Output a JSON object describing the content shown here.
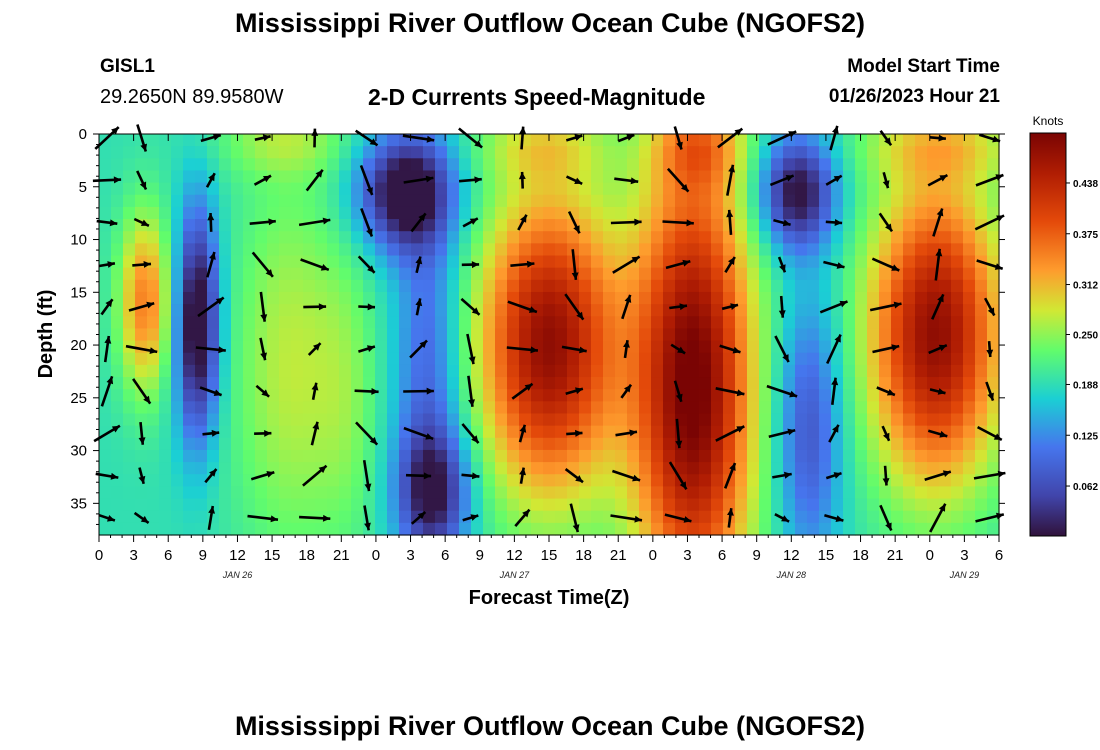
{
  "page": {
    "title": "Mississippi River Outflow Ocean Cube (NGOFS2)",
    "title_bottom": "Mississippi River Outflow Ocean Cube (NGOFS2)",
    "station": "GISL1",
    "coords": "29.2650N  89.9580W",
    "subtitle": "2-D Currents Speed-Magnitude",
    "model_start_label": "Model Start Time",
    "model_start_value": "01/26/2023 Hour 21"
  },
  "chart_data": {
    "type": "heatmap",
    "title": "2-D Currents Speed-Magnitude",
    "xlabel": "Forecast Time(Z)",
    "ylabel": "Depth (ft)",
    "xlim": [
      0,
      78
    ],
    "ylim": [
      38,
      0
    ],
    "x_tick_values": [
      0,
      3,
      6,
      9,
      12,
      15,
      18,
      21,
      24,
      27,
      30,
      33,
      36,
      39,
      42,
      45,
      48,
      51,
      54,
      57,
      60,
      63,
      66,
      69,
      72,
      75,
      78
    ],
    "x_tick_labels": [
      "0",
      "3",
      "6",
      "9",
      "12",
      "15",
      "18",
      "21",
      "0",
      "3",
      "6",
      "9",
      "12",
      "15",
      "18",
      "21",
      "0",
      "3",
      "6",
      "9",
      "12",
      "15",
      "18",
      "21",
      "0",
      "3",
      "6"
    ],
    "day_labels": [
      {
        "text": "JAN 26",
        "x": 12
      },
      {
        "text": "JAN 27",
        "x": 36
      },
      {
        "text": "JAN 28",
        "x": 60
      },
      {
        "text": "JAN 29",
        "x": 75
      }
    ],
    "y_tick_values": [
      0,
      5,
      10,
      15,
      20,
      25,
      30,
      35
    ],
    "y_tick_labels": [
      "0",
      "5",
      "10",
      "15",
      "20",
      "25",
      "30",
      "35"
    ],
    "colorbar": {
      "title": "Knots",
      "range": [
        0,
        0.5
      ],
      "tick_values": [
        0.062,
        0.125,
        0.188,
        0.25,
        0.312,
        0.375,
        0.438
      ],
      "tick_labels": [
        "0.062",
        "0.125",
        "0.188",
        "0.250",
        "0.312",
        "0.375",
        "0.438"
      ]
    },
    "speed_field_knots": {
      "description": "peak speed features (knots) read from the colour field",
      "features": [
        {
          "x_hours": 4,
          "depth_ft": [
            11,
            22
          ],
          "speed": 0.3
        },
        {
          "x_hours": 8.5,
          "depth_ft": [
            12,
            24
          ],
          "speed": 0.02
        },
        {
          "x_hours": 16.5,
          "depth_ft": [
            12,
            34
          ],
          "speed": 0.26
        },
        {
          "x_hours": 26.5,
          "depth_ft": [
            3,
            9
          ],
          "speed": 0.02
        },
        {
          "x_hours": 30.5,
          "depth_ft": [
            30,
            37
          ],
          "speed": 0.03
        },
        {
          "x_hours": 39,
          "depth_ft": [
            11,
            30
          ],
          "speed": 0.48
        },
        {
          "x_hours": 51.5,
          "depth_ft": [
            11,
            38
          ],
          "speed": 0.5
        },
        {
          "x_hours": 60.5,
          "depth_ft": [
            2,
            9
          ],
          "speed": 0.03
        },
        {
          "x_hours": 72.5,
          "depth_ft": [
            11,
            30
          ],
          "speed": 0.48
        }
      ]
    },
    "vector_columns_hours": [
      0,
      3,
      9,
      13.5,
      18,
      22.5,
      27,
      31.5,
      36,
      40.5,
      45,
      49.5,
      54,
      58.5,
      63,
      67.5,
      72,
      76.5
    ],
    "vector_rows_ft": [
      0,
      4,
      8,
      12,
      16,
      20,
      24,
      28,
      32,
      36
    ]
  }
}
